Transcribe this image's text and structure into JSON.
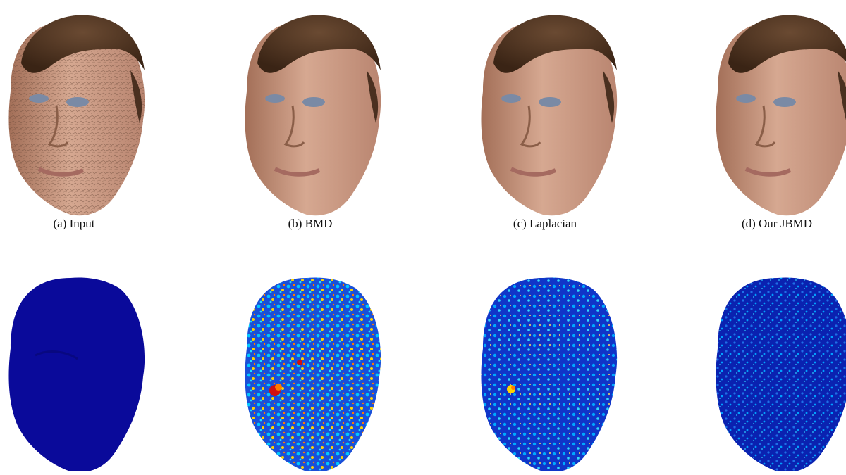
{
  "figure": {
    "captions": [
      {
        "id": "a",
        "text": "(a) Input"
      },
      {
        "id": "b",
        "text": "(b) BMD"
      },
      {
        "id": "c",
        "text": "(c) Laplacian"
      },
      {
        "id": "d",
        "text": "(d) Our JBMD"
      }
    ],
    "colors": {
      "skin": "#c79a82",
      "skin_shadow": "#a36f58",
      "hair": "#4a3020",
      "lips": "#b77a70",
      "eyes": "#6d7f99",
      "heat_low": "#0a0aa0",
      "heat_mid": "#00a8ff",
      "heat_high": "#ffd400",
      "heat_peak": "#d01010"
    },
    "heatmap_rows": [
      {
        "id": "a",
        "style": "uniform-dark"
      },
      {
        "id": "b",
        "style": "high-error"
      },
      {
        "id": "c",
        "style": "medium-error"
      },
      {
        "id": "d",
        "style": "low-error"
      }
    ]
  }
}
